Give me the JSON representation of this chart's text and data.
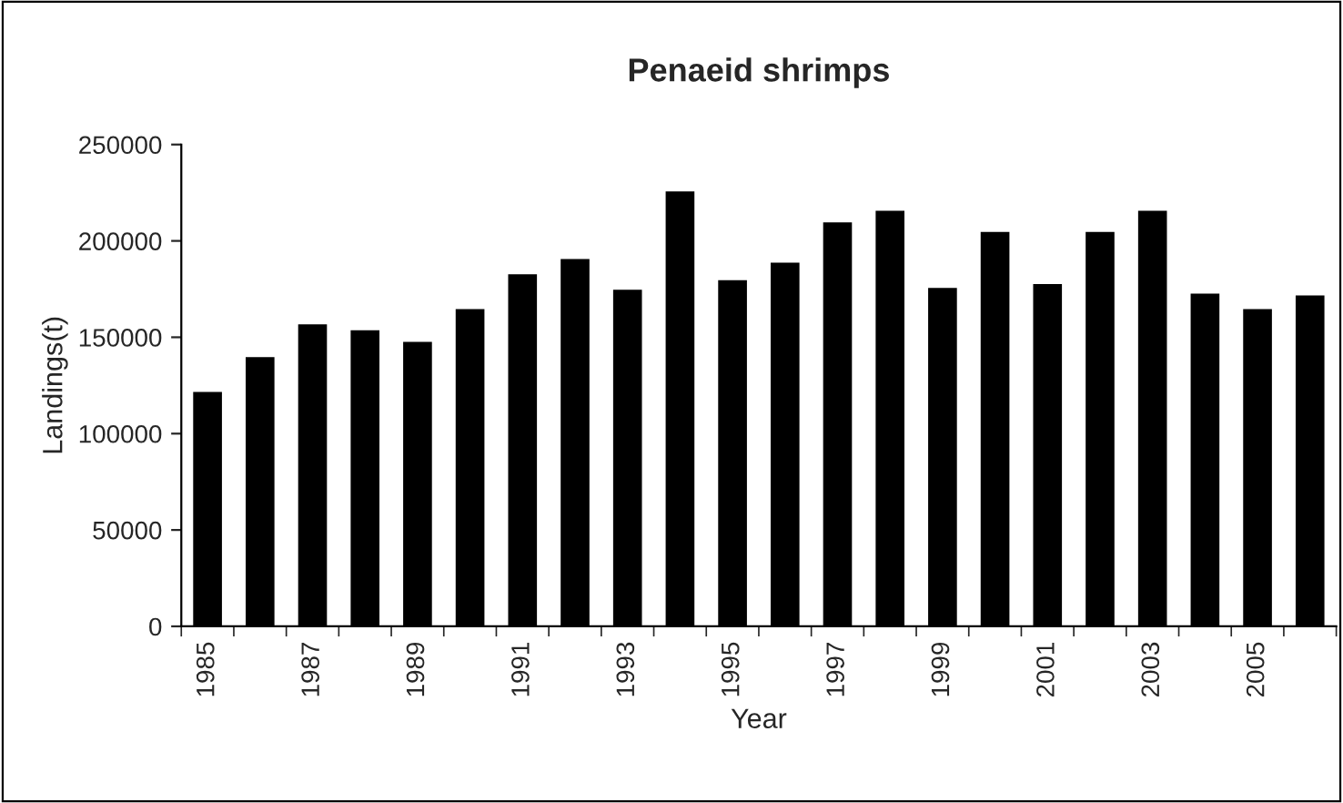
{
  "chart_data": {
    "type": "bar",
    "title": "Penaeid shrimps",
    "xlabel": "Year",
    "ylabel": "Landings(t)",
    "categories": [
      "1985",
      null,
      "1987",
      null,
      "1989",
      null,
      "1991",
      null,
      "1993",
      null,
      "1995",
      null,
      "1997",
      null,
      "1999",
      null,
      "2001",
      null,
      "2003",
      null,
      "2005",
      null
    ],
    "values": [
      121000,
      139000,
      156000,
      153000,
      147000,
      164000,
      182000,
      190000,
      174000,
      225000,
      179000,
      188000,
      209000,
      215000,
      175000,
      204000,
      177000,
      204000,
      215000,
      172000,
      164000,
      171000
    ],
    "color": "#000000",
    "ylim": [
      0,
      250000
    ],
    "yticks": [
      0,
      50000,
      100000,
      150000,
      200000,
      250000
    ],
    "grid": false,
    "legend": false
  }
}
